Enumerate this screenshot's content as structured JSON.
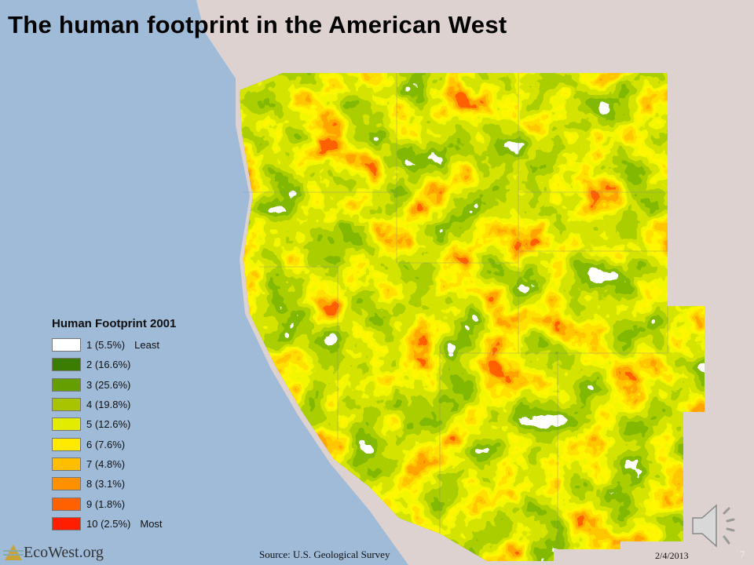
{
  "title": "The human footprint in the American West",
  "legend": {
    "title": "Human Footprint 2001",
    "items": [
      {
        "label": "1 (5.5%)",
        "extra": "Least",
        "color": "#ffffff"
      },
      {
        "label": "2 (16.6%)",
        "extra": "",
        "color": "#3a7d00"
      },
      {
        "label": "3 (25.6%)",
        "extra": "",
        "color": "#659e00"
      },
      {
        "label": "4 (19.8%)",
        "extra": "",
        "color": "#a8c400"
      },
      {
        "label": "5 (12.6%)",
        "extra": "",
        "color": "#e2ec00"
      },
      {
        "label": "6 (7.6%)",
        "extra": "",
        "color": "#ffea00"
      },
      {
        "label": "7 (4.8%)",
        "extra": "",
        "color": "#ffbe00"
      },
      {
        "label": "8 (3.1%)",
        "extra": "",
        "color": "#ff9100"
      },
      {
        "label": "9 (1.8%)",
        "extra": "",
        "color": "#ff6100"
      },
      {
        "label": "10 (2.5%)",
        "extra": "Most",
        "color": "#ff1e00"
      }
    ]
  },
  "footer": {
    "logo": "EcoWest.org",
    "source": "Source: U.S. Geological Survey",
    "date": "2/4/2013",
    "page": "7"
  },
  "colors": {
    "ocean": "#9fbbd8",
    "land": "#ddd2cf"
  }
}
